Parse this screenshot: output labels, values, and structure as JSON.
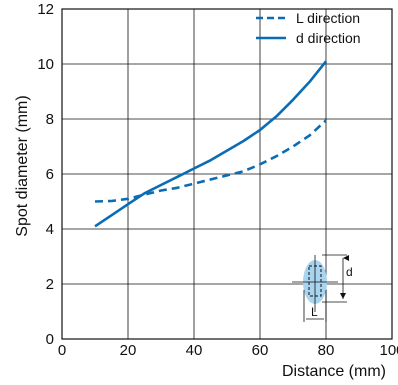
{
  "chart_data": {
    "type": "line",
    "title": "",
    "xlabel": "Distance (mm)",
    "ylabel": "Spot diameter (mm)",
    "xlim": [
      0,
      100
    ],
    "ylim": [
      0,
      12
    ],
    "xticks": [
      "0",
      "20",
      "40",
      "60",
      "80",
      "100"
    ],
    "yticks": [
      "0",
      "2",
      "4",
      "6",
      "8",
      "10",
      "12"
    ],
    "grid": true,
    "legend": "top-right",
    "series": [
      {
        "name": "L direction",
        "style": "dashed",
        "color": "#0a6cb5",
        "x": [
          10,
          15,
          20,
          25,
          30,
          35,
          40,
          45,
          50,
          55,
          60,
          65,
          70,
          75,
          80
        ],
        "y": [
          5.0,
          5.02,
          5.1,
          5.25,
          5.4,
          5.5,
          5.65,
          5.8,
          5.95,
          6.1,
          6.35,
          6.65,
          7.0,
          7.4,
          7.95
        ]
      },
      {
        "name": "d direction",
        "style": "solid",
        "color": "#0a6cb5",
        "x": [
          10,
          15,
          20,
          25,
          30,
          35,
          40,
          45,
          50,
          55,
          60,
          65,
          70,
          75,
          80
        ],
        "y": [
          4.1,
          4.5,
          4.9,
          5.3,
          5.6,
          5.9,
          6.2,
          6.5,
          6.85,
          7.2,
          7.6,
          8.1,
          8.7,
          9.35,
          10.1
        ]
      }
    ],
    "inset": {
      "width_label": "L",
      "height_label": "d",
      "spot_color": "#a8d4f0"
    }
  }
}
